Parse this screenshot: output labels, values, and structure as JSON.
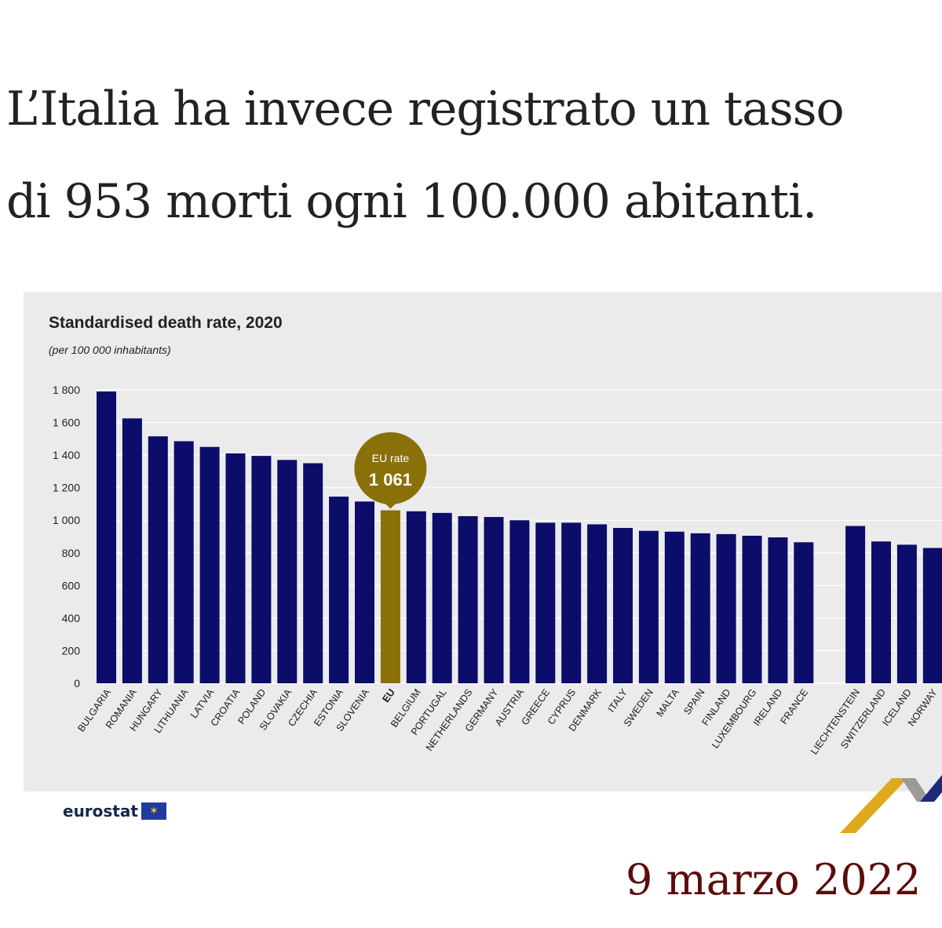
{
  "headline": {
    "line1": "L’Italia ha invece registrato un tasso",
    "line2": "di 953 morti ogni 100.000 abitanti."
  },
  "date_text": "9 marzo 2022",
  "source_logo": "eurostat",
  "colors": {
    "bar": "#0c0c6b",
    "eu_bar": "#8a7009",
    "panel_bg": "#ebebeb",
    "grid": "#ffffff",
    "date": "#5b0c0c",
    "headline": "#222222"
  },
  "chart_data": {
    "type": "bar",
    "title": "Standardised death rate, 2020",
    "subtitle": "(per 100 000 inhabitants)",
    "ylim": [
      0,
      1800
    ],
    "yticks": [
      0,
      200,
      400,
      600,
      800,
      1000,
      1200,
      1400,
      1600,
      1800
    ],
    "ytick_labels": [
      "0",
      "200",
      "400",
      "600",
      "800",
      "1 000",
      "1 200",
      "1 400",
      "1 600",
      "1 800"
    ],
    "grid": true,
    "categories": [
      "BULGARIA",
      "ROMANIA",
      "HUNGARY",
      "LITHUANIA",
      "LATVIA",
      "CROATIA",
      "POLAND",
      "SLOVAKIA",
      "CZECHIA",
      "ESTONIA",
      "SLOVENIA",
      "EU",
      "BELGIUM",
      "PORTUGAL",
      "NETHERLANDS",
      "GERMANY",
      "AUSTRIA",
      "GREECE",
      "CYPRUS",
      "DENMARK",
      "ITALY",
      "SWEDEN",
      "MALTA",
      "SPAIN",
      "FINLAND",
      "LUXEMBOURG",
      "IRELAND",
      "FRANCE",
      "",
      "LIECHTENSTEIN",
      "SWITZERLAND",
      "ICELAND",
      "NORWAY"
    ],
    "values": [
      1790,
      1625,
      1515,
      1485,
      1450,
      1410,
      1395,
      1370,
      1350,
      1145,
      1115,
      1061,
      1055,
      1045,
      1025,
      1020,
      1000,
      985,
      985,
      975,
      953,
      935,
      930,
      920,
      915,
      905,
      895,
      865,
      null,
      965,
      870,
      850,
      830
    ],
    "highlight": "EU",
    "annotation": {
      "label": "EU rate",
      "value_text": "1 061"
    }
  }
}
